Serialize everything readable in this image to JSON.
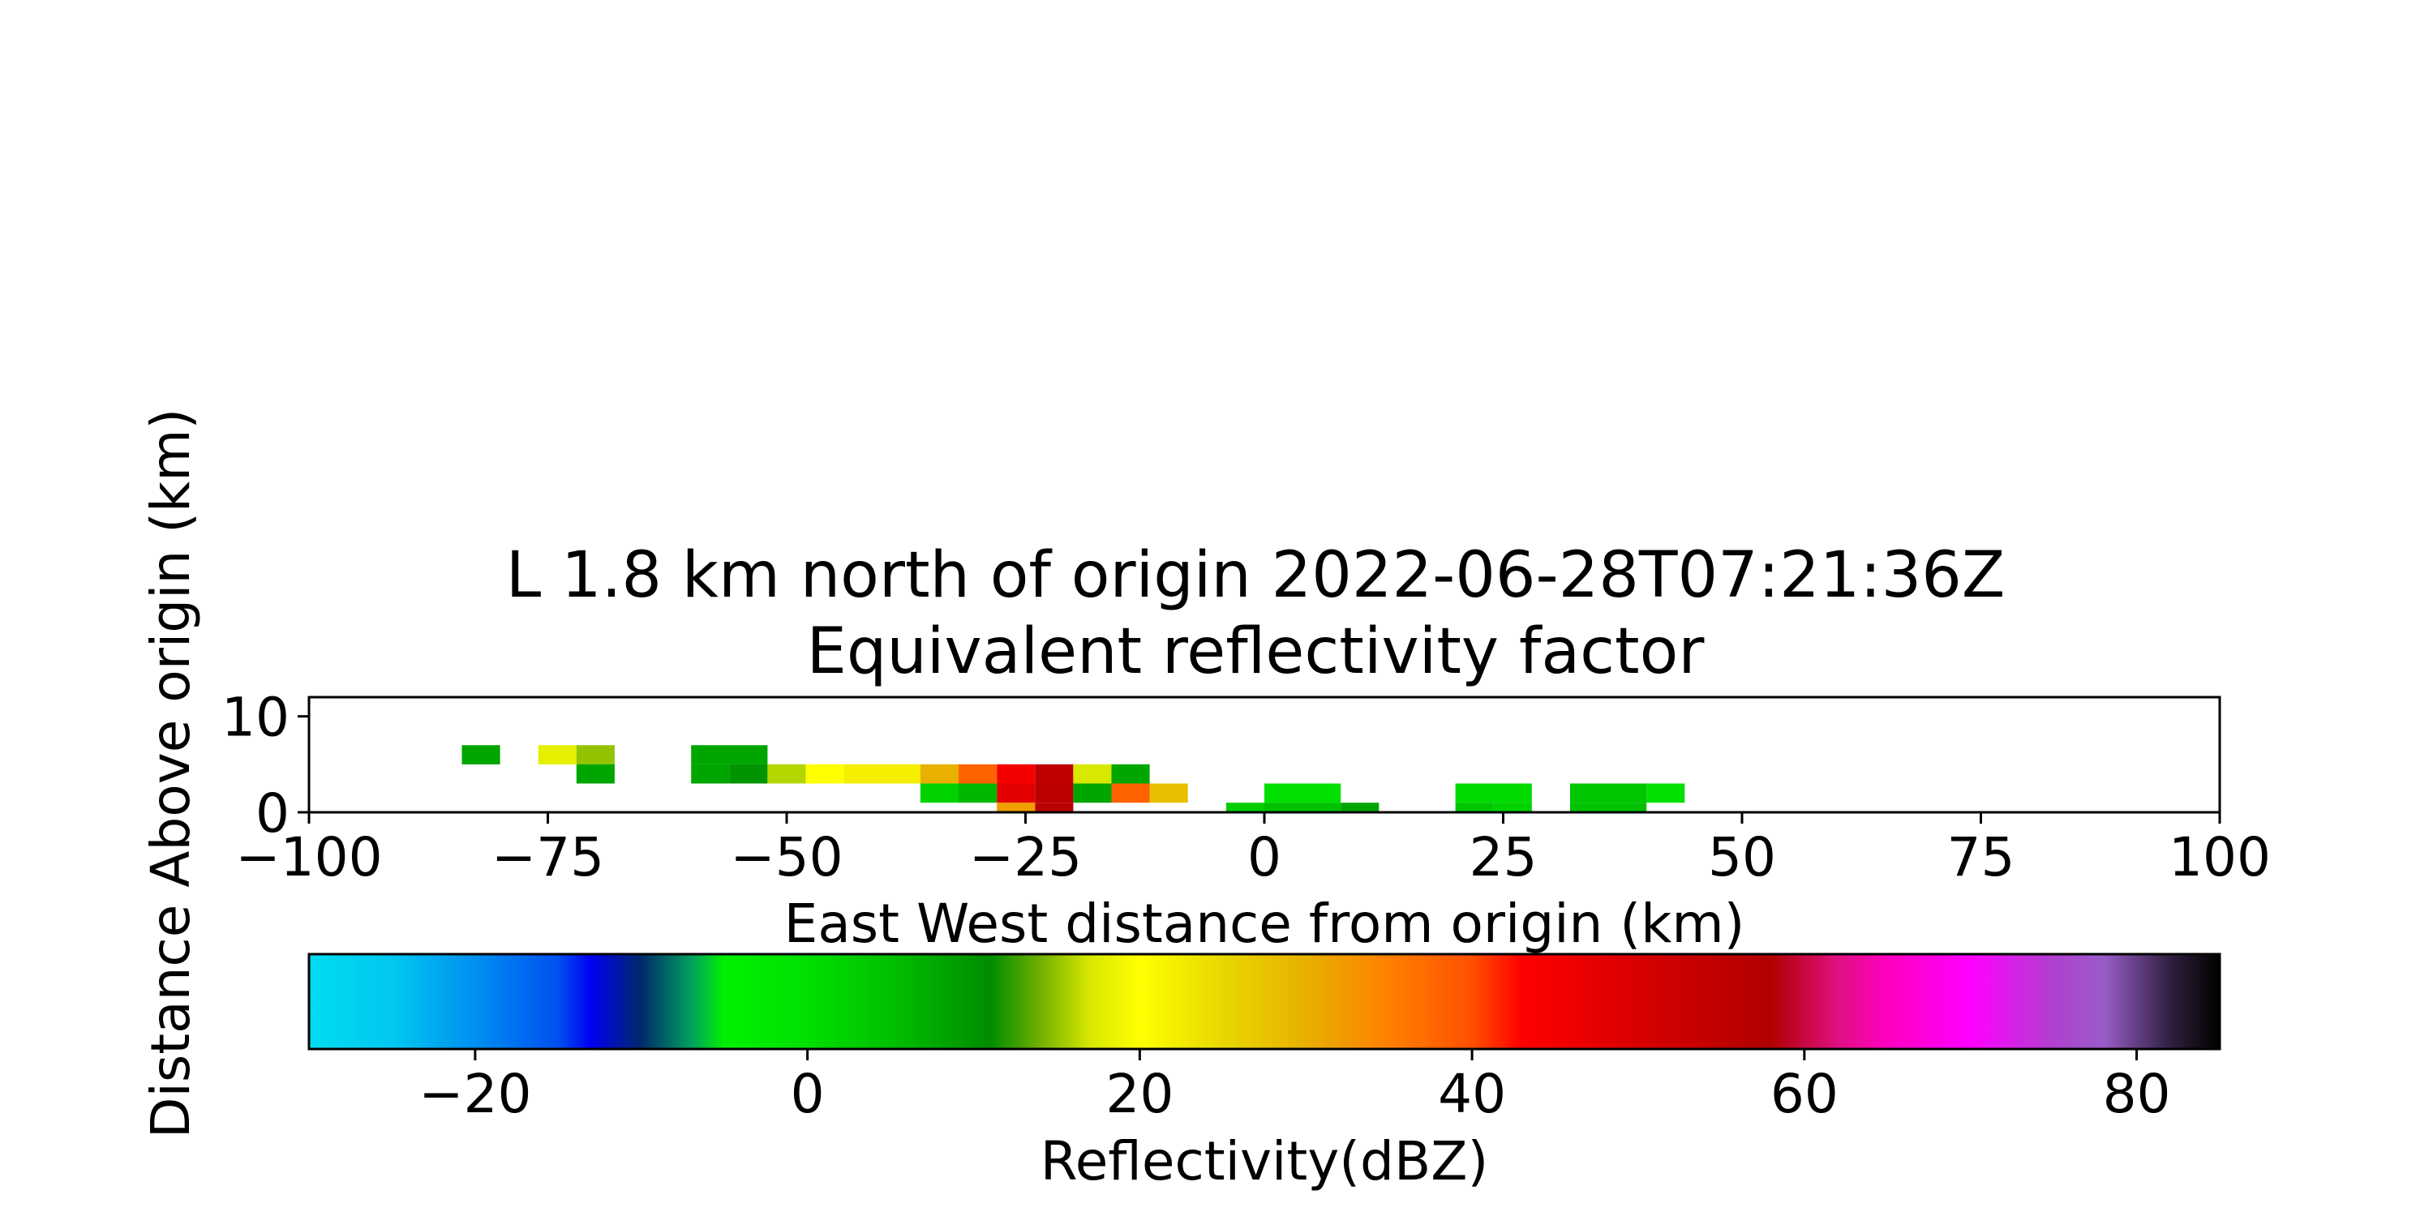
{
  "chart_data": {
    "type": "heatmap",
    "title_line1": "L 1.8 km north of origin 2022-06-28T07:21:36Z",
    "title_line2": "Equivalent reflectivity factor",
    "xlabel": "East West distance from origin (km)",
    "ylabel": "Distance Above origin (km)",
    "xlim": [
      -100,
      100
    ],
    "ylim": [
      0,
      12
    ],
    "xticks": [
      "−100",
      "−75",
      "−50",
      "−25",
      "0",
      "25",
      "50",
      "75",
      "100"
    ],
    "yticks": [
      "0",
      "10"
    ],
    "grid": false,
    "cells": [
      {
        "x": [
          -84,
          -80
        ],
        "y": [
          5,
          7
        ],
        "value": 8
      },
      {
        "x": [
          -76,
          -72
        ],
        "y": [
          5,
          7
        ],
        "value": 18
      },
      {
        "x": [
          -72,
          -68
        ],
        "y": [
          5,
          7
        ],
        "value": 15
      },
      {
        "x": [
          -72,
          -68
        ],
        "y": [
          3,
          5
        ],
        "value": 8
      },
      {
        "x": [
          -60,
          -52
        ],
        "y": [
          5,
          7
        ],
        "value": 8
      },
      {
        "x": [
          -60,
          -56
        ],
        "y": [
          3,
          5
        ],
        "value": 8
      },
      {
        "x": [
          -56,
          -52
        ],
        "y": [
          3,
          5
        ],
        "value": 10
      },
      {
        "x": [
          -52,
          -48
        ],
        "y": [
          3,
          5
        ],
        "value": 16
      },
      {
        "x": [
          -48,
          -44
        ],
        "y": [
          3,
          5
        ],
        "value": 20
      },
      {
        "x": [
          -44,
          -36
        ],
        "y": [
          3,
          5
        ],
        "value": 22
      },
      {
        "x": [
          -36,
          -32
        ],
        "y": [
          3,
          5
        ],
        "value": 30
      },
      {
        "x": [
          -32,
          -28
        ],
        "y": [
          3,
          5
        ],
        "value": 38
      },
      {
        "x": [
          -28,
          -24
        ],
        "y": [
          3,
          5
        ],
        "value": 45
      },
      {
        "x": [
          -24,
          -20
        ],
        "y": [
          3,
          5
        ],
        "value": 55
      },
      {
        "x": [
          -20,
          -16
        ],
        "y": [
          3,
          5
        ],
        "value": 17
      },
      {
        "x": [
          -16,
          -12
        ],
        "y": [
          3,
          5
        ],
        "value": 8
      },
      {
        "x": [
          -36,
          -32
        ],
        "y": [
          1,
          3
        ],
        "value": 2
      },
      {
        "x": [
          -32,
          -28
        ],
        "y": [
          1,
          3
        ],
        "value": 6
      },
      {
        "x": [
          -28,
          -24
        ],
        "y": [
          1,
          3
        ],
        "value": 48
      },
      {
        "x": [
          -24,
          -20
        ],
        "y": [
          1,
          3
        ],
        "value": 56
      },
      {
        "x": [
          -20,
          -16
        ],
        "y": [
          1,
          3
        ],
        "value": 8
      },
      {
        "x": [
          -16,
          -12
        ],
        "y": [
          1,
          3
        ],
        "value": 38
      },
      {
        "x": [
          -12,
          -8
        ],
        "y": [
          1,
          3
        ],
        "value": 28
      },
      {
        "x": [
          -28,
          -24
        ],
        "y": [
          0,
          1
        ],
        "value": 32
      },
      {
        "x": [
          -24,
          -20
        ],
        "y": [
          0,
          1
        ],
        "value": 56
      },
      {
        "x": [
          -4,
          0
        ],
        "y": [
          0,
          1
        ],
        "value": 3
      },
      {
        "x": [
          0,
          8
        ],
        "y": [
          1,
          3
        ],
        "value": 0
      },
      {
        "x": [
          0,
          8
        ],
        "y": [
          0,
          1
        ],
        "value": 5
      },
      {
        "x": [
          8,
          12
        ],
        "y": [
          0,
          1
        ],
        "value": 8
      },
      {
        "x": [
          20,
          28
        ],
        "y": [
          1,
          3
        ],
        "value": 1
      },
      {
        "x": [
          20,
          24
        ],
        "y": [
          0,
          1
        ],
        "value": 4
      },
      {
        "x": [
          24,
          28
        ],
        "y": [
          0,
          1
        ],
        "value": 2
      },
      {
        "x": [
          32,
          40
        ],
        "y": [
          1,
          3
        ],
        "value": 4
      },
      {
        "x": [
          32,
          40
        ],
        "y": [
          0,
          1
        ],
        "value": 5
      },
      {
        "x": [
          40,
          44
        ],
        "y": [
          1,
          3
        ],
        "value": 0
      }
    ],
    "colorbar": {
      "label": "Reflectivity(dBZ)",
      "range": [
        -30,
        85
      ],
      "ticks": [
        "−20",
        "0",
        "20",
        "40",
        "60",
        "80"
      ],
      "tick_values": [
        -20,
        0,
        20,
        40,
        60,
        80
      ],
      "stops": [
        {
          "v": -30,
          "c": "#00ddf0"
        },
        {
          "v": -25,
          "c": "#00c8f0"
        },
        {
          "v": -20,
          "c": "#0090f0"
        },
        {
          "v": -15,
          "c": "#0050f0"
        },
        {
          "v": -13,
          "c": "#0000f0"
        },
        {
          "v": -10,
          "c": "#002a6a"
        },
        {
          "v": -7,
          "c": "#00a060"
        },
        {
          "v": -5,
          "c": "#00f000"
        },
        {
          "v": 0,
          "c": "#00e000"
        },
        {
          "v": 5,
          "c": "#00c000"
        },
        {
          "v": 11,
          "c": "#008c00"
        },
        {
          "v": 14,
          "c": "#70b000"
        },
        {
          "v": 17,
          "c": "#d8e800"
        },
        {
          "v": 20,
          "c": "#ffff00"
        },
        {
          "v": 25,
          "c": "#e8d800"
        },
        {
          "v": 30,
          "c": "#e8b000"
        },
        {
          "v": 35,
          "c": "#ff8000"
        },
        {
          "v": 40,
          "c": "#ff5000"
        },
        {
          "v": 43,
          "c": "#ff0000"
        },
        {
          "v": 50,
          "c": "#d80000"
        },
        {
          "v": 58,
          "c": "#b00000"
        },
        {
          "v": 62,
          "c": "#e01080"
        },
        {
          "v": 65,
          "c": "#ff00c0"
        },
        {
          "v": 70,
          "c": "#ff00ff"
        },
        {
          "v": 75,
          "c": "#b040d0"
        },
        {
          "v": 78,
          "c": "#9a5cc8"
        },
        {
          "v": 82,
          "c": "#302040"
        },
        {
          "v": 85,
          "c": "#000000"
        }
      ]
    }
  }
}
